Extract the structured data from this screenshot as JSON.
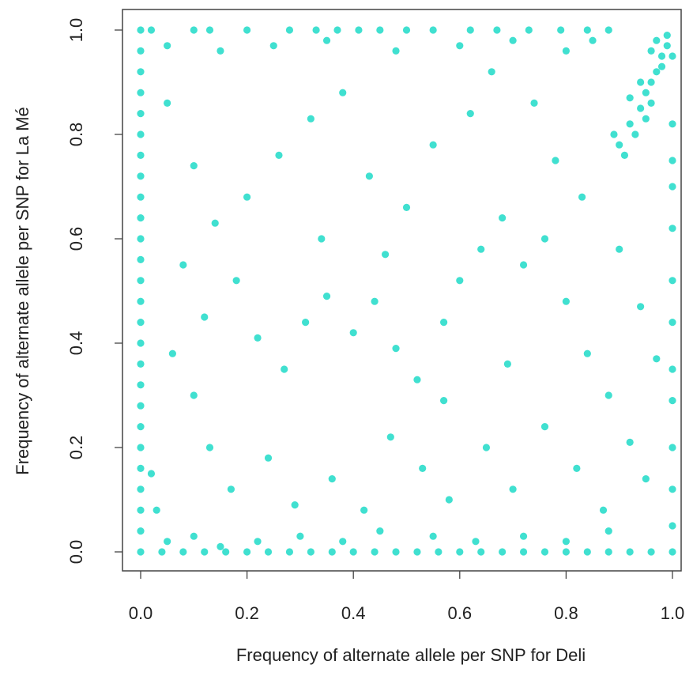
{
  "chart_data": {
    "type": "scatter",
    "xlabel": "Frequency of alternate allele per SNP for Deli",
    "ylabel": "Frequency of alternate allele per SNP for La Mé",
    "color": "#40e0d0",
    "xlim": [
      0,
      1
    ],
    "ylim": [
      0,
      1
    ],
    "xticks": [
      {
        "value": 0,
        "label": "0.0"
      },
      0.2,
      0.4,
      0.6,
      0.8,
      {
        "value": 1,
        "label": "1.0"
      }
    ],
    "yticks": [
      {
        "value": 0,
        "label": "0.0"
      },
      0.2,
      0.4,
      0.6,
      0.8,
      {
        "value": 1,
        "label": "1.0"
      }
    ],
    "x": [
      0,
      0,
      0,
      0,
      0,
      0,
      0,
      0,
      0,
      0,
      0,
      0,
      0,
      0,
      0,
      0,
      0,
      0,
      0,
      0,
      0,
      0,
      0,
      0,
      0,
      0,
      0.04,
      0.08,
      0.12,
      0.16,
      0.2,
      0.24,
      0.28,
      0.32,
      0.36,
      0.4,
      0.44,
      0.48,
      0.52,
      0.56,
      0.6,
      0.64,
      0.68,
      0.72,
      0.76,
      0.8,
      0.84,
      0.88,
      0.92,
      0.96,
      1,
      0.02,
      0.1,
      0.13,
      0.2,
      0.28,
      0.33,
      0.37,
      0.41,
      0.45,
      0.5,
      0.55,
      0.62,
      0.67,
      0.73,
      0.79,
      0.84,
      0.88,
      1,
      1,
      1,
      1,
      1,
      1,
      1,
      1,
      1,
      1,
      1,
      0.9,
      0.92,
      0.94,
      0.95,
      0.96,
      0.97,
      0.98,
      0.99,
      0.93,
      0.91,
      0.96,
      0.98,
      0.97,
      0.95,
      0.99,
      0.89,
      0.94,
      1,
      0.96,
      0.92,
      0.05,
      0.1,
      0.15,
      0.22,
      0.3,
      0.38,
      0.45,
      0.55,
      0.63,
      0.72,
      0.8,
      0.88,
      0.03,
      0.02,
      0.05,
      0.15,
      0.25,
      0.35,
      0.48,
      0.6,
      0.7,
      0.8,
      0.85,
      0.05,
      0.1,
      0.14,
      0.18,
      0.22,
      0.27,
      0.31,
      0.35,
      0.4,
      0.44,
      0.48,
      0.52,
      0.57,
      0.6,
      0.64,
      0.68,
      0.72,
      0.76,
      0.8,
      0.84,
      0.88,
      0.92,
      0.95,
      0.1,
      0.13,
      0.17,
      0.24,
      0.29,
      0.36,
      0.42,
      0.47,
      0.53,
      0.58,
      0.65,
      0.7,
      0.76,
      0.82,
      0.87,
      0.08,
      0.12,
      0.2,
      0.26,
      0.32,
      0.38,
      0.43,
      0.5,
      0.55,
      0.62,
      0.66,
      0.74,
      0.78,
      0.83,
      0.9,
      0.94,
      0.97,
      0.06,
      0.34,
      0.46,
      0.57,
      0.69
    ],
    "values": [
      0,
      0.04,
      0.08,
      0.12,
      0.16,
      0.2,
      0.24,
      0.28,
      0.32,
      0.36,
      0.4,
      0.44,
      0.48,
      0.52,
      0.56,
      0.6,
      0.64,
      0.68,
      0.72,
      0.76,
      0.8,
      0.84,
      0.88,
      0.92,
      0.96,
      1,
      0,
      0,
      0,
      0,
      0,
      0,
      0,
      0,
      0,
      0,
      0,
      0,
      0,
      0,
      0,
      0,
      0,
      0,
      0,
      0,
      0,
      0,
      0,
      0,
      0,
      1,
      1,
      1,
      1,
      1,
      1,
      1,
      1,
      1,
      1,
      1,
      1,
      1,
      1,
      1,
      1,
      1,
      0.05,
      0.12,
      0.2,
      0.29,
      0.35,
      0.44,
      0.52,
      0.62,
      0.7,
      0.75,
      0.82,
      0.78,
      0.82,
      0.85,
      0.88,
      0.9,
      0.92,
      0.95,
      0.97,
      0.8,
      0.76,
      0.86,
      0.93,
      0.98,
      0.83,
      0.99,
      0.8,
      0.9,
      0.95,
      0.96,
      0.87,
      0.02,
      0.03,
      0.01,
      0.02,
      0.03,
      0.02,
      0.04,
      0.03,
      0.02,
      0.03,
      0.02,
      0.04,
      0.08,
      0.15,
      0.97,
      0.96,
      0.97,
      0.98,
      0.96,
      0.97,
      0.98,
      0.96,
      0.98,
      0.86,
      0.74,
      0.63,
      0.52,
      0.41,
      0.35,
      0.44,
      0.49,
      0.42,
      0.48,
      0.39,
      0.33,
      0.29,
      0.52,
      0.58,
      0.64,
      0.55,
      0.6,
      0.48,
      0.38,
      0.3,
      0.21,
      0.14,
      0.3,
      0.2,
      0.12,
      0.18,
      0.09,
      0.14,
      0.08,
      0.22,
      0.16,
      0.1,
      0.2,
      0.12,
      0.24,
      0.16,
      0.08,
      0.55,
      0.45,
      0.68,
      0.76,
      0.83,
      0.88,
      0.72,
      0.66,
      0.78,
      0.84,
      0.92,
      0.86,
      0.75,
      0.68,
      0.58,
      0.47,
      0.37,
      0.38,
      0.6,
      0.57,
      0.44,
      0.36
    ]
  }
}
